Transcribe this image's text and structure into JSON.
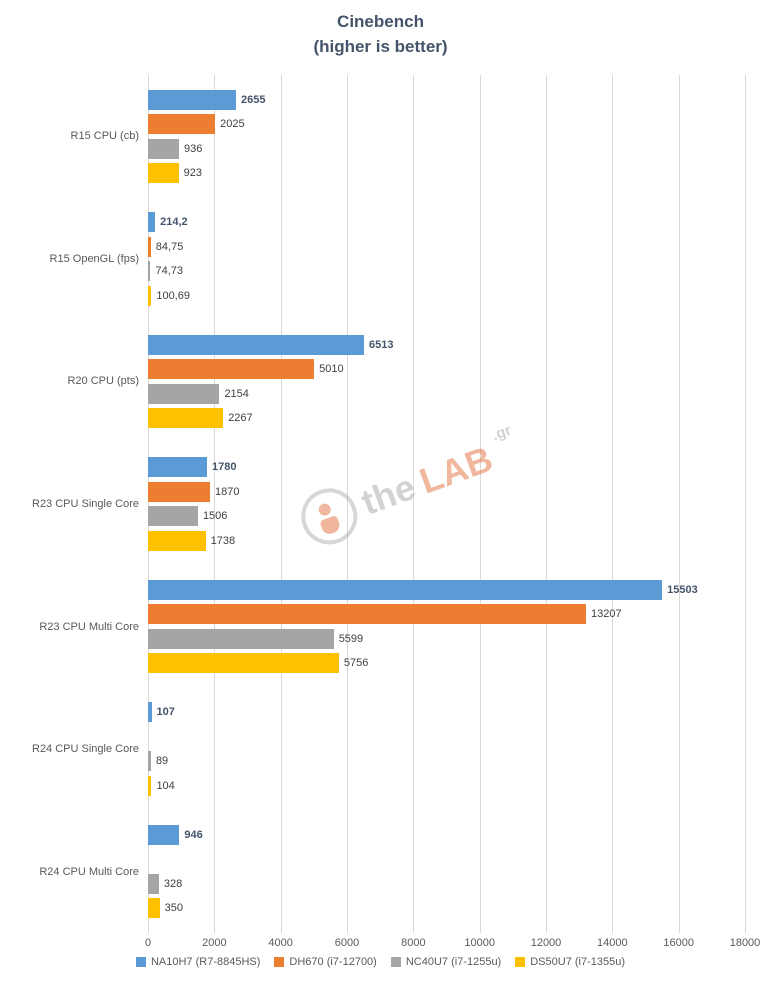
{
  "title": {
    "line1": "Cinebench",
    "line2": "(higher is better)"
  },
  "chart_data": {
    "type": "bar",
    "orientation": "horizontal",
    "title": "Cinebench (higher is better)",
    "categories": [
      "R15 CPU (cb)",
      "R15 OpenGL (fps)",
      "R20 CPU (pts)",
      "R23 CPU Single Core",
      "R23 CPU Multi Core",
      "R24 CPU Single Core",
      "R24 CPU Multi Core"
    ],
    "series": [
      {
        "name": "NA10H7 (R7-8845HS)",
        "color": "#5B9BD5",
        "values": [
          2655,
          214.2,
          6513,
          1780,
          15503,
          107,
          946
        ],
        "labels": [
          "2655",
          "214,2",
          "6513",
          "1780",
          "15503",
          "107",
          "946"
        ]
      },
      {
        "name": "DH670 (i7-12700)",
        "color": "#ED7D31",
        "values": [
          2025,
          84.75,
          5010,
          1870,
          13207,
          null,
          null
        ],
        "labels": [
          "2025",
          "84,75",
          "5010",
          "1870",
          "13207",
          null,
          null
        ]
      },
      {
        "name": "NC40U7 (i7-1255u)",
        "color": "#A5A5A5",
        "values": [
          936,
          74.73,
          2154,
          1506,
          5599,
          89,
          328
        ],
        "labels": [
          "936",
          "74,73",
          "2154",
          "1506",
          "5599",
          "89",
          "328"
        ]
      },
      {
        "name": "DS50U7 (i7-1355u)",
        "color": "#FFC000",
        "values": [
          923,
          100.69,
          2267,
          1738,
          5756,
          104,
          350
        ],
        "labels": [
          "923",
          "100,69",
          "2267",
          "1738",
          "5756",
          "104",
          "350"
        ]
      }
    ],
    "xlim": [
      0,
      18000
    ],
    "x_ticks": [
      0,
      2000,
      4000,
      6000,
      8000,
      10000,
      12000,
      14000,
      16000,
      18000
    ],
    "grid": true,
    "legend_position": "bottom"
  },
  "watermark": {
    "the": "the",
    "lab": "LAB",
    "gr": ".gr"
  }
}
